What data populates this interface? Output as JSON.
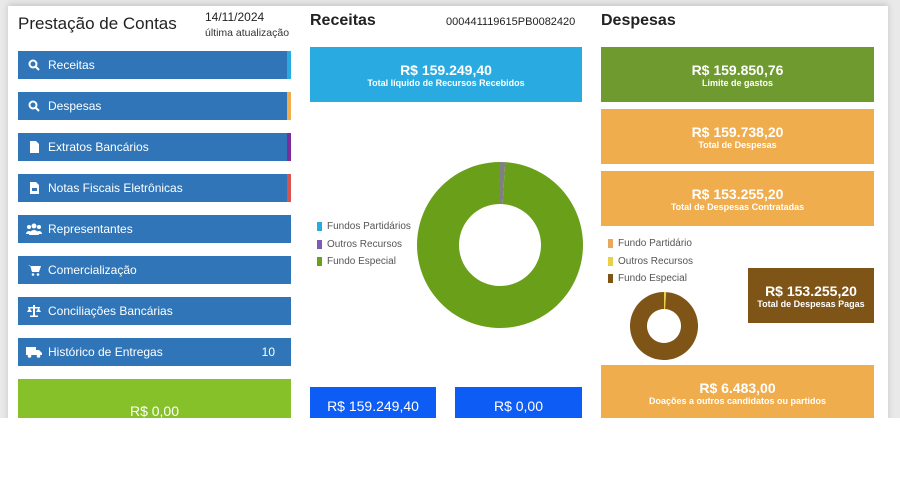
{
  "left": {
    "title": "Prestação de Contas",
    "date": "14/11/2024",
    "date_label": "última atualização",
    "menu": [
      {
        "label": "Receitas",
        "icon": "search-icon",
        "color": "#29abe2"
      },
      {
        "label": "Despesas",
        "icon": "search-icon",
        "color": "#f0ad4e"
      },
      {
        "label": "Extratos Bancários",
        "icon": "file-icon",
        "color": "#7b2d9b"
      },
      {
        "label": "Notas Fiscais Eletrônicas",
        "icon": "file-invoice-icon",
        "color": "#d9534f"
      },
      {
        "label": "Representantes",
        "icon": "users-icon",
        "color": ""
      },
      {
        "label": "Comercialização",
        "icon": "cart-icon",
        "color": ""
      },
      {
        "label": "Conciliações Bancárias",
        "icon": "scale-icon",
        "color": ""
      },
      {
        "label": "Histórico de Entregas",
        "icon": "truck-icon",
        "color": "",
        "count": "10"
      }
    ],
    "green_box": {
      "value": "R$ 0,00"
    }
  },
  "receitas": {
    "title": "Receitas",
    "id": "000441119615PB0082420",
    "total": {
      "value": "R$ 159.249,40",
      "label": "Total líquido de Recursos Recebidos"
    },
    "legend": [
      {
        "label": "Fundos Partidários",
        "color": "#29abe2"
      },
      {
        "label": "Outros Recursos",
        "color": "#7d5bb8"
      },
      {
        "label": "Fundo Especial",
        "color": "#6a9f1a"
      }
    ],
    "donut": [
      {
        "name": "Fundos Partidários",
        "value": 0
      },
      {
        "name": "Outros Recursos",
        "value": 1
      },
      {
        "name": "Fundo Especial",
        "value": 99
      }
    ],
    "donut_colors": [
      "#29abe2",
      "#808080",
      "#6a9f1a"
    ],
    "bottom": [
      {
        "value": "R$ 159.249,40"
      },
      {
        "value": "R$ 0,00"
      }
    ]
  },
  "despesas": {
    "title": "Despesas",
    "boxes": [
      {
        "value": "R$ 159.850,76",
        "label": "Limite de gastos"
      },
      {
        "value": "R$ 159.738,20",
        "label": "Total de Despesas"
      },
      {
        "value": "R$ 153.255,20",
        "label": "Total de Despesas Contratadas"
      }
    ],
    "legend": [
      {
        "label": "Fundo Partidário",
        "color": "#e8a95c"
      },
      {
        "label": "Outros Recursos",
        "color": "#e8d04a"
      },
      {
        "label": "Fundo Especial",
        "color": "#7f5417"
      }
    ],
    "donut": [
      {
        "name": "Fundo Partidário",
        "value": 0
      },
      {
        "name": "Outros Recursos",
        "value": 1
      },
      {
        "name": "Fundo Especial",
        "value": 99
      }
    ],
    "donut_colors": [
      "#e8a95c",
      "#e8d04a",
      "#7f5417"
    ],
    "paid": {
      "value": "R$ 153.255,20",
      "label": "Total de Despesas Pagas"
    },
    "donations": {
      "value": "R$ 6.483,00",
      "label": "Doações a outros candidatos ou partidos"
    }
  }
}
